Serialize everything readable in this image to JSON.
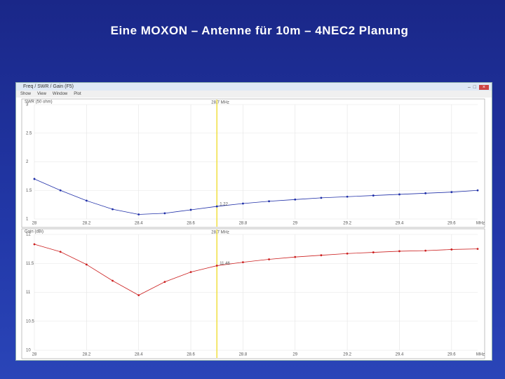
{
  "slide_title": "Eine MOXON – Antenne für 10m – 4NEC2 Planung",
  "window": {
    "title": "Freq / SWR / Gain (F5)",
    "menu": [
      "Show",
      "View",
      "Window",
      "Plot"
    ]
  },
  "chart_data": [
    {
      "type": "line",
      "y_label": "SWR (50 ohm)",
      "x_unit": "MHz",
      "x": [
        28.0,
        28.1,
        28.2,
        28.3,
        28.4,
        28.5,
        28.6,
        28.7,
        28.8,
        28.9,
        29.0,
        29.1,
        29.2,
        29.3,
        29.4,
        29.5,
        29.6,
        29.7
      ],
      "series": [
        {
          "color": "#1f2fa8",
          "values": [
            1.7,
            1.5,
            1.32,
            1.17,
            1.08,
            1.1,
            1.16,
            1.22,
            1.27,
            1.31,
            1.34,
            1.37,
            1.39,
            1.41,
            1.43,
            1.45,
            1.47,
            1.5
          ]
        }
      ],
      "xlim": [
        28.0,
        29.7
      ],
      "xticks": [
        28,
        28.2,
        28.4,
        28.6,
        28.8,
        29,
        29.2,
        29.4,
        29.6
      ],
      "ylim": [
        1,
        3
      ],
      "yticks": [
        1,
        1.5,
        2,
        2.5,
        3
      ],
      "grid": true,
      "marker": {
        "value": 28.7,
        "label": "28.7 MHz",
        "readout": "1.22"
      }
    },
    {
      "type": "line",
      "y_label": "Gain (dBi)",
      "x_unit": "MHz",
      "x": [
        28.0,
        28.1,
        28.2,
        28.3,
        28.4,
        28.5,
        28.6,
        28.7,
        28.8,
        28.9,
        29.0,
        29.1,
        29.2,
        29.3,
        29.4,
        29.5,
        29.6,
        29.7
      ],
      "series": [
        {
          "color": "#cc2020",
          "values": [
            11.83,
            11.7,
            11.48,
            11.2,
            10.95,
            11.18,
            11.35,
            11.46,
            11.52,
            11.57,
            11.61,
            11.64,
            11.67,
            11.69,
            11.71,
            11.72,
            11.74,
            11.75
          ]
        }
      ],
      "xlim": [
        28.0,
        29.7
      ],
      "xticks": [
        28,
        28.2,
        28.4,
        28.6,
        28.8,
        29,
        29.2,
        29.4,
        29.6
      ],
      "ylim": [
        10,
        12
      ],
      "yticks": [
        10,
        10.5,
        11,
        11.5,
        12
      ],
      "grid": true,
      "marker": {
        "value": 28.7,
        "label": "28.7 MHz",
        "readout": "11.46"
      }
    }
  ]
}
